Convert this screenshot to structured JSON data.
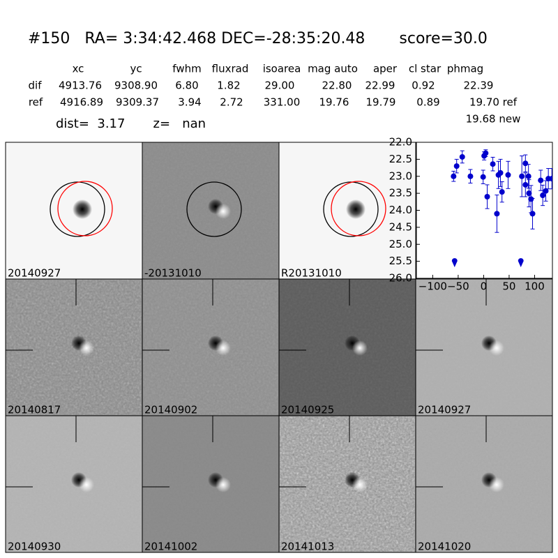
{
  "header": {
    "title": "#150   RA= 3:34:42.468 DEC=-28:35:20.48       score=30.0"
  },
  "table": {
    "columns": [
      "xc",
      "yc",
      "fwhm",
      "fluxrad",
      "isoarea",
      "mag auto",
      "aper",
      "cl star",
      "phmag"
    ],
    "rows": [
      [
        "dif",
        "4913.76",
        "9308.90",
        "6.80",
        "1.82",
        "29.00",
        "22.80",
        "22.99",
        "0.92",
        "22.39"
      ],
      [
        "ref",
        "4916.89",
        "9309.37",
        "3.94",
        "2.72",
        "331.00",
        "19.76",
        "19.79",
        "0.89",
        "19.70 ref"
      ]
    ],
    "extra": "19.68 new"
  },
  "dist_line": "dist=  3.17       z=   nan",
  "panels": [
    {
      "label": "20140927",
      "color": "#000000"
    },
    {
      "label": "-20131010",
      "color": "#000000"
    },
    {
      "label": "R20131010",
      "color": "#000000"
    },
    {
      "label": "20140817",
      "color": "#000000"
    },
    {
      "label": "20140902",
      "color": "#000000"
    },
    {
      "label": "20140925",
      "color": "#000000"
    },
    {
      "label": "20140927",
      "color": "#ff0000"
    },
    {
      "label": "20140930",
      "color": "#000000"
    },
    {
      "label": "20141002",
      "color": "#000000"
    },
    {
      "label": "20141013",
      "color": "#000000"
    },
    {
      "label": "20141020",
      "color": "#000000"
    }
  ],
  "chart_data": {
    "type": "errorbar",
    "color": "#0000cc",
    "x": [
      -59,
      -53,
      -42,
      -26,
      -1,
      1,
      4,
      7,
      18,
      26,
      29,
      33,
      36,
      48,
      75,
      82,
      82,
      88,
      89,
      93,
      96,
      112,
      116,
      122,
      127,
      134
    ],
    "values": [
      23.0,
      22.7,
      22.43,
      23.0,
      23.02,
      22.4,
      22.32,
      23.6,
      22.64,
      24.1,
      22.96,
      22.9,
      23.46,
      22.96,
      23.0,
      22.62,
      23.25,
      23.0,
      23.5,
      23.67,
      24.1,
      23.12,
      23.56,
      23.43,
      23.07,
      23.07
    ],
    "errors": [
      0.15,
      0.2,
      0.18,
      0.2,
      0.2,
      0.12,
      0.1,
      0.35,
      0.2,
      0.55,
      0.4,
      0.4,
      0.3,
      0.4,
      0.6,
      0.25,
      0.35,
      0.35,
      0.4,
      0.4,
      0.45,
      0.3,
      0.3,
      0.3,
      0.3,
      0.3
    ],
    "limits": {
      "x": [
        -57,
        73
      ],
      "values": [
        25.55,
        25.55
      ]
    },
    "xlim": [
      -132,
      135
    ],
    "ylim": [
      26.0,
      22.0
    ],
    "xticks": [
      {
        "value": -100,
        "label": "−100"
      },
      {
        "value": -50,
        "label": "−50"
      },
      0,
      50,
      100
    ],
    "yticks": [
      {
        "value": 22.0,
        "label": "22.0"
      },
      {
        "value": 22.5,
        "label": "22.5"
      },
      {
        "value": 23.0,
        "label": "23.0"
      },
      {
        "value": 23.5,
        "label": "23.5"
      },
      {
        "value": 24.0,
        "label": "24.0"
      },
      {
        "value": 24.5,
        "label": "24.5"
      },
      {
        "value": 25.0,
        "label": "25.0"
      },
      {
        "value": 25.5,
        "label": "25.5"
      },
      {
        "value": 26.0,
        "label": "26.0"
      }
    ]
  }
}
